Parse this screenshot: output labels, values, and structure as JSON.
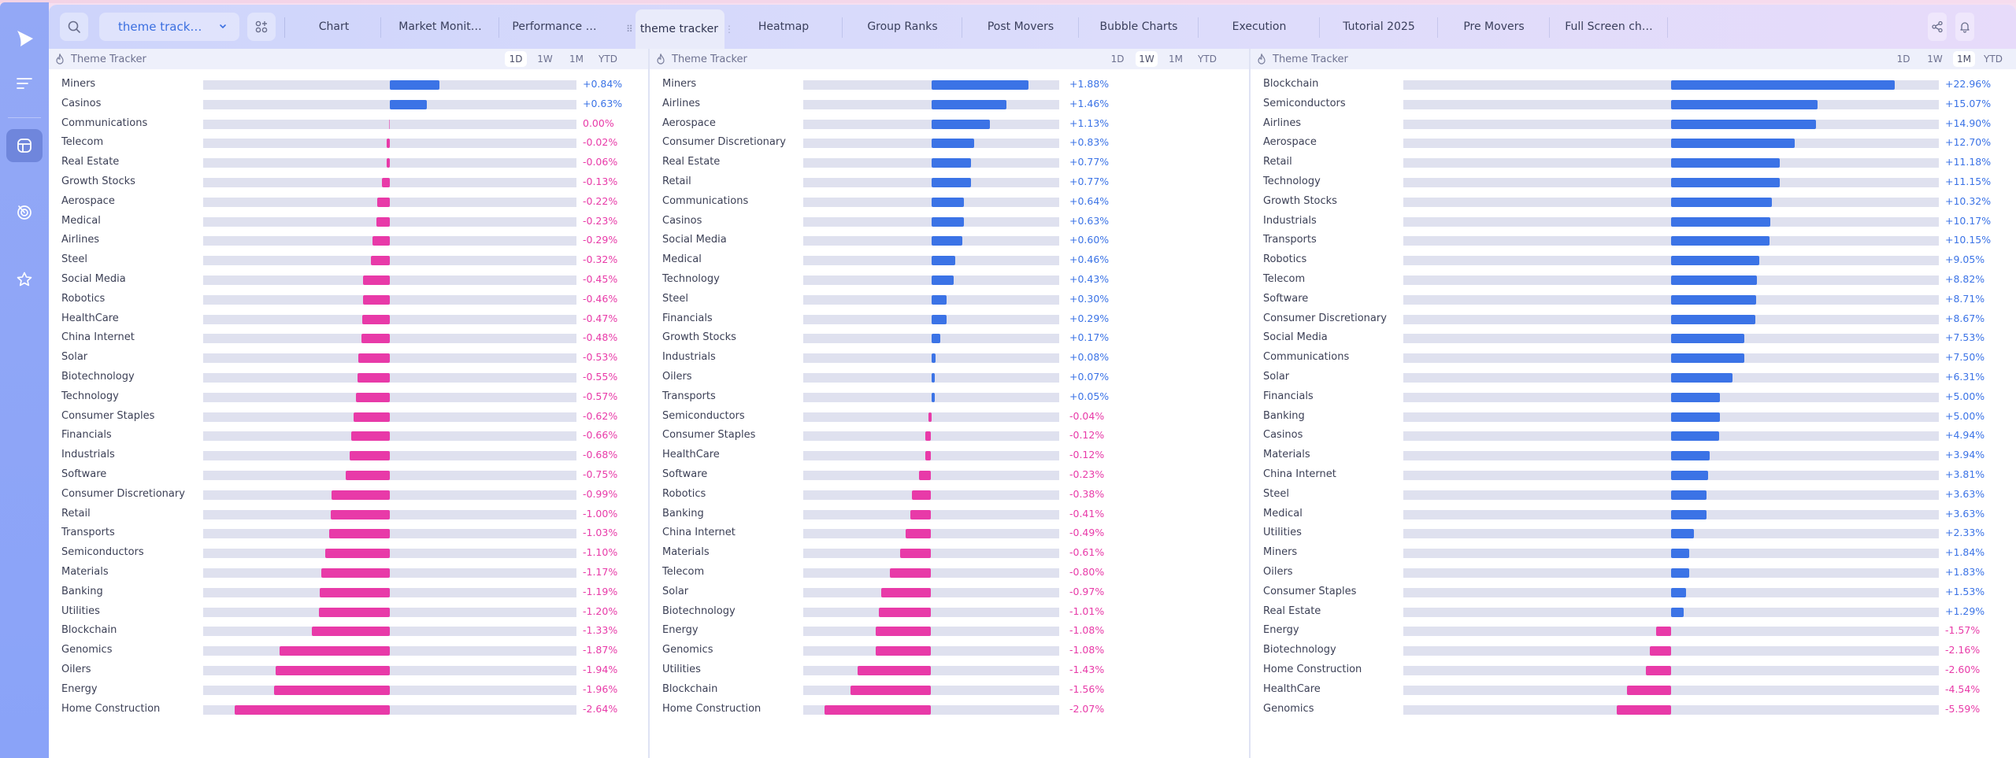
{
  "colors": {
    "positive": "#3b73e6",
    "negative": "#e83aa8",
    "accent": "#3b6fe0"
  },
  "sidebar": {
    "items": [
      {
        "icon": "play-logo-icon"
      },
      {
        "icon": "menu-lines-icon"
      },
      {
        "icon": "dashboard-icon",
        "active": true
      },
      {
        "icon": "radar-icon"
      },
      {
        "icon": "star-icon"
      }
    ]
  },
  "toolbar": {
    "layout_select": "theme track…",
    "tabs": [
      {
        "label": "Chart"
      },
      {
        "label": "Market Monit…"
      },
      {
        "label": "Performance …"
      },
      {
        "label": "theme tracker",
        "active": true
      },
      {
        "label": "Heatmap"
      },
      {
        "label": "Group Ranks"
      },
      {
        "label": "Post Movers"
      },
      {
        "label": "Bubble Charts"
      },
      {
        "label": "Execution"
      },
      {
        "label": "Tutorial 2025"
      },
      {
        "label": "Pre Movers"
      },
      {
        "label": "Full Screen ch…"
      }
    ]
  },
  "panels": [
    {
      "title": "Theme Tracker",
      "ranges": [
        "1D",
        "1W",
        "1M",
        "YTD"
      ],
      "selected_range": "1D"
    },
    {
      "title": "Theme Tracker",
      "ranges": [
        "1D",
        "1W",
        "1M",
        "YTD"
      ],
      "selected_range": "1W"
    },
    {
      "title": "Theme Tracker",
      "ranges": [
        "1D",
        "1W",
        "1M",
        "YTD"
      ],
      "selected_range": "1M"
    }
  ],
  "chart_data": [
    {
      "type": "bar",
      "orientation": "horizontal-diverging",
      "title": "Theme Tracker",
      "period": "1D",
      "unit": "%",
      "categories": [
        "Miners",
        "Casinos",
        "Communications",
        "Telecom",
        "Real Estate",
        "Growth Stocks",
        "Aerospace",
        "Medical",
        "Airlines",
        "Steel",
        "Social Media",
        "Robotics",
        "HealthCare",
        "China Internet",
        "Solar",
        "Biotechnology",
        "Technology",
        "Consumer Staples",
        "Financials",
        "Industrials",
        "Software",
        "Consumer Discretionary",
        "Retail",
        "Transports",
        "Semiconductors",
        "Materials",
        "Banking",
        "Utilities",
        "Blockchain",
        "Genomics",
        "Oilers",
        "Energy",
        "Home Construction"
      ],
      "values": [
        0.84,
        0.63,
        0.0,
        -0.02,
        -0.06,
        -0.13,
        -0.22,
        -0.23,
        -0.29,
        -0.32,
        -0.45,
        -0.46,
        -0.47,
        -0.48,
        -0.53,
        -0.55,
        -0.57,
        -0.62,
        -0.66,
        -0.68,
        -0.75,
        -0.99,
        -1.0,
        -1.03,
        -1.1,
        -1.17,
        -1.19,
        -1.2,
        -1.33,
        -1.87,
        -1.94,
        -1.96,
        -2.64
      ],
      "labels": [
        "+0.84%",
        "+0.63%",
        "0.00%",
        "-0.02%",
        "-0.06%",
        "-0.13%",
        "-0.22%",
        "-0.23%",
        "-0.29%",
        "-0.32%",
        "-0.45%",
        "-0.46%",
        "-0.47%",
        "-0.48%",
        "-0.53%",
        "-0.55%",
        "-0.57%",
        "-0.62%",
        "-0.66%",
        "-0.68%",
        "-0.75%",
        "-0.99%",
        "-1.00%",
        "-1.03%",
        "-1.10%",
        "-1.17%",
        "-1.19%",
        "-1.20%",
        "-1.33%",
        "-1.87%",
        "-1.94%",
        "-1.96%",
        "-2.64%"
      ],
      "xlim": [
        -3.17,
        3.17
      ]
    },
    {
      "type": "bar",
      "orientation": "horizontal-diverging",
      "title": "Theme Tracker",
      "period": "1W",
      "unit": "%",
      "categories": [
        "Miners",
        "Airlines",
        "Aerospace",
        "Consumer Discretionary",
        "Real Estate",
        "Retail",
        "Communications",
        "Casinos",
        "Social Media",
        "Medical",
        "Technology",
        "Steel",
        "Financials",
        "Growth Stocks",
        "Industrials",
        "Oilers",
        "Transports",
        "Semiconductors",
        "Consumer Staples",
        "HealthCare",
        "Software",
        "Robotics",
        "Banking",
        "China Internet",
        "Materials",
        "Telecom",
        "Solar",
        "Biotechnology",
        "Energy",
        "Genomics",
        "Utilities",
        "Blockchain",
        "Home Construction"
      ],
      "values": [
        1.88,
        1.46,
        1.13,
        0.83,
        0.77,
        0.77,
        0.64,
        0.63,
        0.6,
        0.46,
        0.43,
        0.3,
        0.29,
        0.17,
        0.08,
        0.07,
        0.05,
        -0.04,
        -0.12,
        -0.12,
        -0.23,
        -0.38,
        -0.41,
        -0.49,
        -0.61,
        -0.8,
        -0.97,
        -1.01,
        -1.08,
        -1.08,
        -1.43,
        -1.56,
        -2.07
      ],
      "labels": [
        "+1.88%",
        "+1.46%",
        "+1.13%",
        "+0.83%",
        "+0.77%",
        "+0.77%",
        "+0.64%",
        "+0.63%",
        "+0.60%",
        "+0.46%",
        "+0.43%",
        "+0.30%",
        "+0.29%",
        "+0.17%",
        "+0.08%",
        "+0.07%",
        "+0.05%",
        "-0.04%",
        "-0.12%",
        "-0.12%",
        "-0.23%",
        "-0.38%",
        "-0.41%",
        "-0.49%",
        "-0.61%",
        "-0.80%",
        "-0.97%",
        "-1.01%",
        "-1.08%",
        "-1.08%",
        "-1.43%",
        "-1.56%",
        "-2.07%"
      ],
      "xlim": [
        -2.48,
        2.48
      ]
    },
    {
      "type": "bar",
      "orientation": "horizontal-diverging",
      "title": "Theme Tracker",
      "period": "1M",
      "unit": "%",
      "categories": [
        "Blockchain",
        "Semiconductors",
        "Airlines",
        "Aerospace",
        "Retail",
        "Technology",
        "Growth Stocks",
        "Industrials",
        "Transports",
        "Robotics",
        "Telecom",
        "Software",
        "Consumer Discretionary",
        "Social Media",
        "Communications",
        "Solar",
        "Financials",
        "Banking",
        "Casinos",
        "Materials",
        "China Internet",
        "Steel",
        "Medical",
        "Utilities",
        "Miners",
        "Oilers",
        "Consumer Staples",
        "Real Estate",
        "Energy",
        "Biotechnology",
        "Home Construction",
        "HealthCare",
        "Genomics"
      ],
      "values": [
        22.96,
        15.07,
        14.9,
        12.7,
        11.18,
        11.15,
        10.32,
        10.17,
        10.15,
        9.05,
        8.82,
        8.71,
        8.67,
        7.53,
        7.5,
        6.31,
        5.0,
        5.0,
        4.94,
        3.94,
        3.81,
        3.63,
        3.63,
        2.33,
        1.84,
        1.83,
        1.53,
        1.29,
        -1.57,
        -2.16,
        -2.6,
        -4.54,
        -5.59
      ],
      "labels": [
        "+22.96%",
        "+15.07%",
        "+14.90%",
        "+12.70%",
        "+11.18%",
        "+11.15%",
        "+10.32%",
        "+10.17%",
        "+10.15%",
        "+9.05%",
        "+8.82%",
        "+8.71%",
        "+8.67%",
        "+7.53%",
        "+7.50%",
        "+6.31%",
        "+5.00%",
        "+5.00%",
        "+4.94%",
        "+3.94%",
        "+3.81%",
        "+3.63%",
        "+3.63%",
        "+2.33%",
        "+1.84%",
        "+1.83%",
        "+1.53%",
        "+1.29%",
        "-1.57%",
        "-2.16%",
        "-2.60%",
        "-4.54%",
        "-5.59%"
      ],
      "xlim": [
        -27.5,
        27.5
      ]
    }
  ]
}
